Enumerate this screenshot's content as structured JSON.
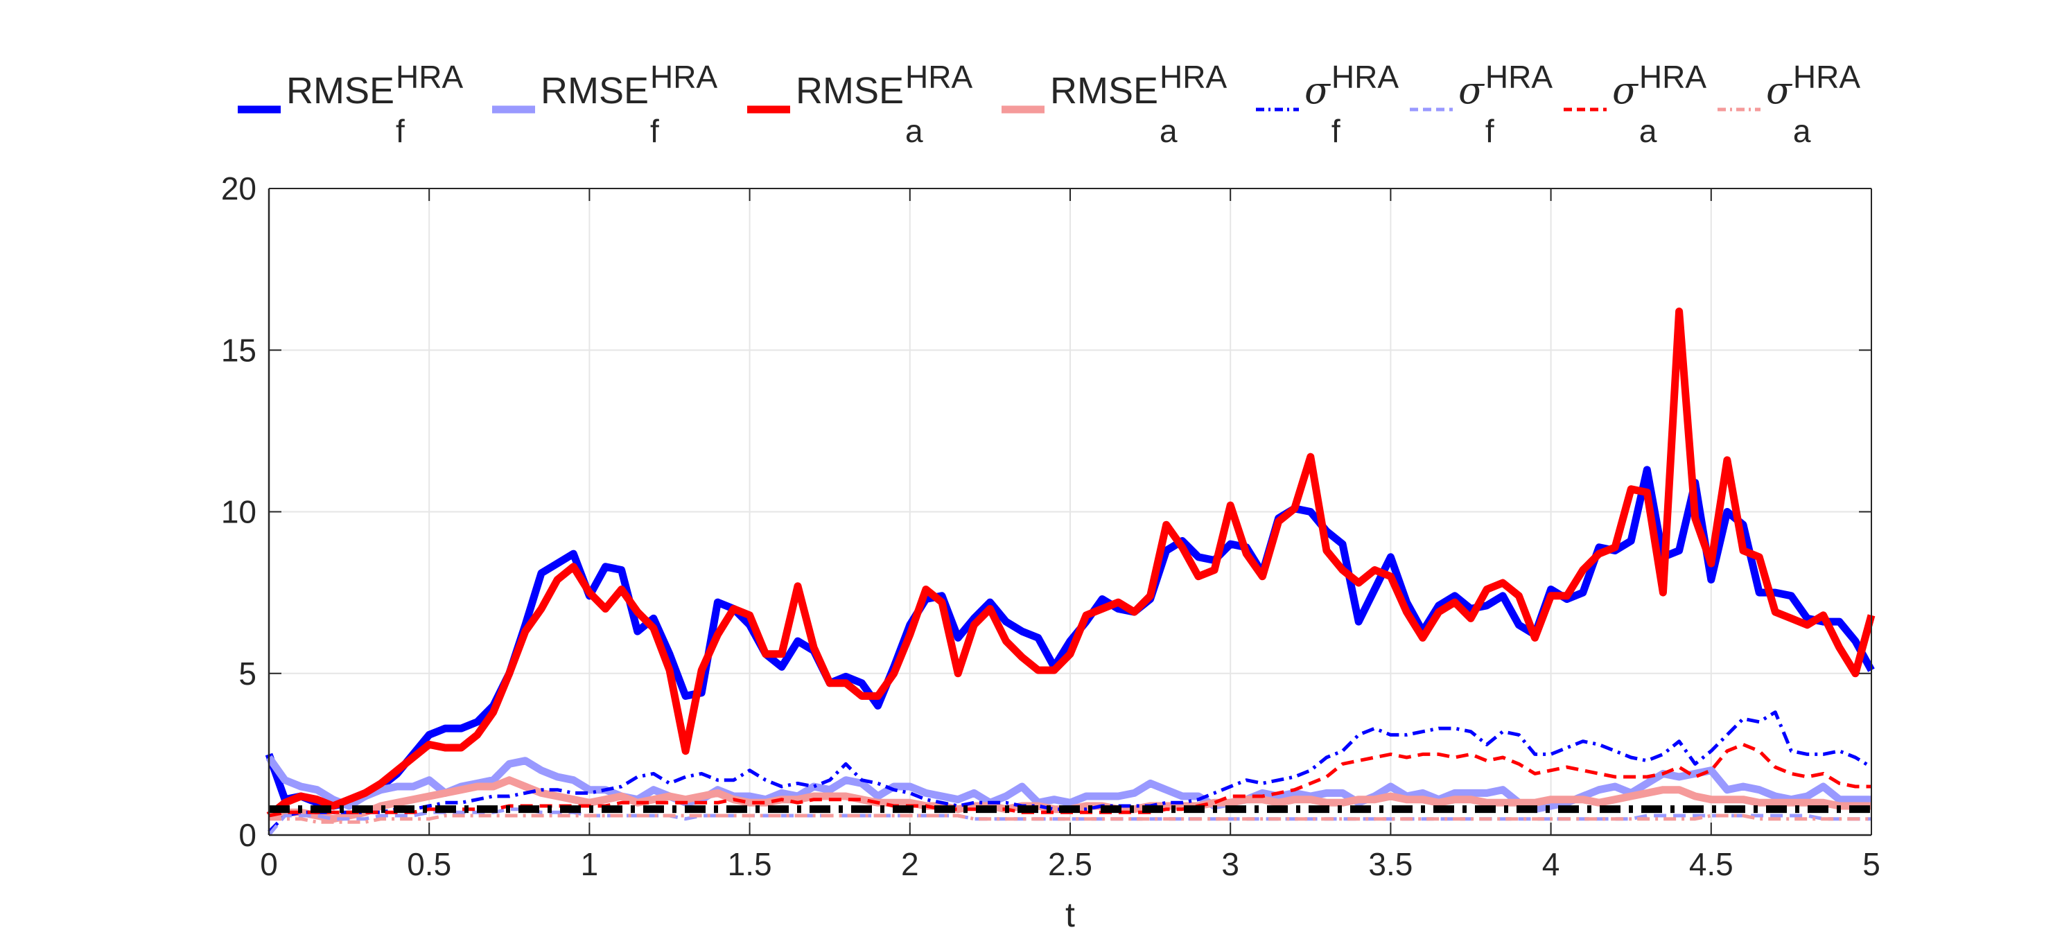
{
  "chart_data": {
    "type": "line",
    "title": "",
    "xlabel": "t",
    "ylabel": "",
    "xlim": [
      0,
      5
    ],
    "ylim": [
      0,
      20
    ],
    "xticks": [
      "0",
      "0.5",
      "1",
      "1.5",
      "2",
      "2.5",
      "3",
      "3.5",
      "4",
      "4.5",
      "5"
    ],
    "yticks": [
      "0",
      "5",
      "10",
      "15",
      "20"
    ],
    "grid": true,
    "legend_position": "top",
    "x": [
      0,
      0.05,
      0.1,
      0.15,
      0.2,
      0.25,
      0.3,
      0.35,
      0.4,
      0.45,
      0.5,
      0.55,
      0.6,
      0.65,
      0.7,
      0.75,
      0.8,
      0.85,
      0.9,
      0.95,
      1,
      1.05,
      1.1,
      1.15,
      1.2,
      1.25,
      1.3,
      1.35,
      1.4,
      1.45,
      1.5,
      1.55,
      1.6,
      1.65,
      1.7,
      1.75,
      1.8,
      1.85,
      1.9,
      1.95,
      2,
      2.05,
      2.1,
      2.15,
      2.2,
      2.25,
      2.3,
      2.35,
      2.4,
      2.45,
      2.5,
      2.55,
      2.6,
      2.65,
      2.7,
      2.75,
      2.8,
      2.85,
      2.9,
      2.95,
      3,
      3.05,
      3.1,
      3.15,
      3.2,
      3.25,
      3.3,
      3.35,
      3.4,
      3.45,
      3.5,
      3.55,
      3.6,
      3.65,
      3.7,
      3.75,
      3.8,
      3.85,
      3.9,
      3.95,
      4,
      4.05,
      4.1,
      4.15,
      4.2,
      4.25,
      4.3,
      4.35,
      4.4,
      4.45,
      4.5,
      4.55,
      4.6,
      4.65,
      4.7,
      4.75,
      4.8,
      4.85,
      4.9,
      4.95,
      5
    ],
    "series": [
      {
        "name": "RMSE_f^HRA",
        "color": "#0000ff",
        "style": "solid",
        "width": "thick",
        "values": [
          2.5,
          1.1,
          1.2,
          1.0,
          0.9,
          1.0,
          1.2,
          1.5,
          1.9,
          2.5,
          3.1,
          3.3,
          3.3,
          3.5,
          4.0,
          5.0,
          6.5,
          8.1,
          8.4,
          8.7,
          7.4,
          8.3,
          8.2,
          6.3,
          6.7,
          5.6,
          4.3,
          4.4,
          7.2,
          7.0,
          6.5,
          5.6,
          5.2,
          6.0,
          5.7,
          4.7,
          4.9,
          4.7,
          4.0,
          5.2,
          6.5,
          7.3,
          7.4,
          6.1,
          6.7,
          7.2,
          6.6,
          6.3,
          6.1,
          5.2,
          6.0,
          6.6,
          7.3,
          7.0,
          6.9,
          7.3,
          8.8,
          9.1,
          8.6,
          8.5,
          9.0,
          8.9,
          8.1,
          9.8,
          10.1,
          10.0,
          9.4,
          9.0,
          6.6,
          7.6,
          8.6,
          7.2,
          6.3,
          7.1,
          7.4,
          7.0,
          7.1,
          7.4,
          6.5,
          6.2,
          7.6,
          7.3,
          7.5,
          8.9,
          8.8,
          9.1,
          11.3,
          8.6,
          8.8,
          10.9,
          7.9,
          10.0,
          9.6,
          7.5,
          7.5,
          7.4,
          6.7,
          6.6,
          6.6,
          6.0,
          5.1
        ]
      },
      {
        "name": "RMSE_f^HRA",
        "color": "#9999ff",
        "style": "solid",
        "width": "thick",
        "values": [
          2.4,
          1.7,
          1.5,
          1.4,
          1.1,
          0.9,
          1.2,
          1.4,
          1.5,
          1.5,
          1.7,
          1.3,
          1.5,
          1.6,
          1.7,
          2.2,
          2.3,
          2.0,
          1.8,
          1.7,
          1.4,
          1.4,
          1.2,
          1.1,
          1.4,
          1.2,
          1.0,
          1.1,
          1.4,
          1.2,
          1.2,
          1.1,
          1.3,
          1.2,
          1.5,
          1.4,
          1.7,
          1.6,
          1.2,
          1.5,
          1.5,
          1.3,
          1.2,
          1.1,
          1.3,
          1.0,
          1.2,
          1.5,
          1.0,
          1.1,
          1.0,
          1.2,
          1.2,
          1.2,
          1.3,
          1.6,
          1.4,
          1.2,
          1.2,
          0.9,
          1.0,
          1.1,
          1.3,
          1.2,
          1.3,
          1.2,
          1.3,
          1.3,
          1.0,
          1.2,
          1.5,
          1.2,
          1.3,
          1.1,
          1.3,
          1.3,
          1.3,
          1.4,
          1.0,
          0.8,
          0.9,
          1.0,
          1.2,
          1.4,
          1.5,
          1.3,
          1.6,
          1.9,
          1.8,
          1.9,
          2.0,
          1.4,
          1.5,
          1.4,
          1.2,
          1.1,
          1.2,
          1.5,
          1.1,
          1.1,
          1.1
        ]
      },
      {
        "name": "RMSE_a^HRA",
        "color": "#ff0000",
        "style": "solid",
        "width": "thick",
        "values": [
          0.6,
          1.0,
          1.2,
          1.1,
          0.9,
          1.1,
          1.3,
          1.6,
          2.0,
          2.4,
          2.8,
          2.7,
          2.7,
          3.1,
          3.8,
          5.0,
          6.3,
          7.0,
          7.9,
          8.3,
          7.5,
          7.0,
          7.6,
          6.9,
          6.4,
          5.1,
          2.6,
          5.1,
          6.2,
          7.0,
          6.8,
          5.6,
          5.6,
          7.7,
          5.8,
          4.7,
          4.7,
          4.3,
          4.3,
          5.0,
          6.2,
          7.6,
          7.2,
          5.0,
          6.5,
          7.0,
          6.0,
          5.5,
          5.1,
          5.1,
          5.6,
          6.8,
          7.0,
          7.2,
          6.9,
          7.4,
          9.6,
          8.9,
          8.0,
          8.2,
          10.2,
          8.7,
          8.0,
          9.7,
          10.1,
          11.7,
          8.8,
          8.2,
          7.8,
          8.2,
          8.0,
          6.9,
          6.1,
          6.9,
          7.2,
          6.7,
          7.6,
          7.8,
          7.4,
          6.1,
          7.4,
          7.4,
          8.2,
          8.7,
          8.9,
          10.7,
          10.6,
          7.5,
          16.2,
          9.8,
          8.4,
          11.6,
          8.8,
          8.6,
          6.9,
          6.7,
          6.5,
          6.8,
          5.8,
          5.0,
          6.8
        ]
      },
      {
        "name": "RMSE_a^HRA",
        "color": "#f59a9a",
        "style": "solid",
        "width": "thick",
        "values": [
          0.6,
          0.7,
          0.7,
          0.6,
          0.5,
          0.6,
          0.7,
          0.9,
          1.0,
          1.1,
          1.2,
          1.3,
          1.4,
          1.5,
          1.5,
          1.7,
          1.5,
          1.3,
          1.2,
          1.1,
          1.0,
          1.1,
          1.2,
          1.0,
          1.1,
          1.2,
          1.1,
          1.2,
          1.3,
          1.1,
          1.0,
          1.0,
          1.1,
          1.1,
          1.2,
          1.2,
          1.2,
          1.1,
          1.0,
          1.0,
          1.0,
          0.9,
          0.9,
          0.8,
          0.9,
          0.9,
          0.8,
          0.9,
          0.9,
          0.8,
          0.8,
          0.9,
          0.9,
          0.8,
          0.8,
          0.9,
          0.9,
          0.9,
          0.9,
          1.0,
          1.0,
          1.1,
          1.1,
          1.0,
          1.1,
          1.1,
          1.0,
          1.0,
          1.1,
          1.1,
          1.2,
          1.1,
          1.1,
          1.0,
          1.1,
          1.1,
          1.0,
          1.0,
          1.0,
          1.0,
          1.1,
          1.1,
          1.1,
          1.0,
          1.1,
          1.2,
          1.3,
          1.4,
          1.4,
          1.2,
          1.1,
          1.1,
          1.1,
          1.0,
          1.0,
          1.0,
          1.0,
          1.0,
          0.9,
          0.9,
          0.9
        ]
      },
      {
        "name": "σ_f^HRA",
        "color": "#0000ff",
        "style": "dashdot",
        "width": "thin",
        "values": [
          0.1,
          0.6,
          0.7,
          0.7,
          0.7,
          0.7,
          0.7,
          0.7,
          0.8,
          0.8,
          0.9,
          1.0,
          1.0,
          1.1,
          1.2,
          1.2,
          1.3,
          1.4,
          1.4,
          1.3,
          1.3,
          1.4,
          1.5,
          1.8,
          1.9,
          1.6,
          1.8,
          1.9,
          1.7,
          1.7,
          2.0,
          1.7,
          1.5,
          1.6,
          1.5,
          1.7,
          2.2,
          1.7,
          1.6,
          1.4,
          1.3,
          1.1,
          1.0,
          0.9,
          1.0,
          1.0,
          1.0,
          0.9,
          0.9,
          0.8,
          0.8,
          0.8,
          0.9,
          0.9,
          0.9,
          0.9,
          1.0,
          1.0,
          1.1,
          1.3,
          1.5,
          1.7,
          1.6,
          1.7,
          1.8,
          2.0,
          2.4,
          2.6,
          3.1,
          3.3,
          3.1,
          3.1,
          3.2,
          3.3,
          3.3,
          3.2,
          2.8,
          3.2,
          3.1,
          2.5,
          2.5,
          2.7,
          2.9,
          2.8,
          2.6,
          2.4,
          2.3,
          2.5,
          2.9,
          2.2,
          2.6,
          3.1,
          3.6,
          3.5,
          3.8,
          2.6,
          2.5,
          2.5,
          2.6,
          2.4,
          2.1
        ]
      },
      {
        "name": "σ_f^HRA",
        "color": "#9999ff",
        "style": "dashed",
        "width": "thin",
        "values": [
          0.0,
          0.6,
          0.6,
          0.6,
          0.5,
          0.5,
          0.5,
          0.6,
          0.6,
          0.6,
          0.7,
          0.7,
          0.7,
          0.7,
          0.7,
          0.8,
          0.8,
          0.7,
          0.7,
          0.7,
          0.6,
          0.6,
          0.6,
          0.6,
          0.6,
          0.6,
          0.5,
          0.6,
          0.6,
          0.6,
          0.6,
          0.6,
          0.6,
          0.6,
          0.6,
          0.6,
          0.6,
          0.6,
          0.6,
          0.6,
          0.6,
          0.6,
          0.6,
          0.6,
          0.5,
          0.5,
          0.5,
          0.5,
          0.5,
          0.5,
          0.5,
          0.5,
          0.5,
          0.5,
          0.5,
          0.5,
          0.5,
          0.5,
          0.5,
          0.5,
          0.5,
          0.5,
          0.5,
          0.5,
          0.5,
          0.5,
          0.5,
          0.5,
          0.5,
          0.5,
          0.5,
          0.5,
          0.5,
          0.5,
          0.5,
          0.5,
          0.5,
          0.5,
          0.5,
          0.5,
          0.5,
          0.5,
          0.5,
          0.5,
          0.5,
          0.5,
          0.6,
          0.6,
          0.6,
          0.6,
          0.6,
          0.6,
          0.6,
          0.6,
          0.6,
          0.6,
          0.6,
          0.5,
          0.5,
          0.5,
          0.5
        ]
      },
      {
        "name": "σ_a^HRA",
        "color": "#ff0000",
        "style": "dashed",
        "width": "thin",
        "values": [
          0.6,
          0.7,
          0.7,
          0.7,
          0.7,
          0.7,
          0.7,
          0.7,
          0.7,
          0.7,
          0.8,
          0.8,
          0.8,
          0.8,
          0.8,
          0.9,
          0.9,
          0.9,
          0.9,
          0.9,
          0.9,
          0.9,
          1.0,
          1.0,
          1.0,
          1.0,
          1.0,
          1.0,
          1.0,
          1.1,
          1.0,
          1.0,
          1.1,
          1.0,
          1.1,
          1.1,
          1.1,
          1.1,
          1.0,
          0.9,
          0.9,
          0.9,
          0.8,
          0.8,
          0.8,
          0.8,
          0.8,
          0.7,
          0.7,
          0.7,
          0.7,
          0.7,
          0.7,
          0.7,
          0.7,
          0.7,
          0.8,
          0.8,
          0.9,
          1.0,
          1.2,
          1.2,
          1.2,
          1.3,
          1.4,
          1.6,
          1.8,
          2.2,
          2.3,
          2.4,
          2.5,
          2.4,
          2.5,
          2.5,
          2.4,
          2.5,
          2.3,
          2.4,
          2.2,
          1.9,
          2.0,
          2.1,
          2.0,
          1.9,
          1.8,
          1.8,
          1.8,
          1.9,
          2.1,
          1.8,
          2.0,
          2.6,
          2.8,
          2.6,
          2.1,
          1.9,
          1.8,
          1.9,
          1.6,
          1.5,
          1.5
        ]
      },
      {
        "name": "σ_a^HRA",
        "color": "#f59a9a",
        "style": "dashdot",
        "width": "thin",
        "values": [
          0.5,
          0.5,
          0.5,
          0.4,
          0.4,
          0.4,
          0.4,
          0.5,
          0.5,
          0.5,
          0.5,
          0.6,
          0.6,
          0.6,
          0.6,
          0.6,
          0.6,
          0.6,
          0.6,
          0.6,
          0.6,
          0.6,
          0.6,
          0.6,
          0.6,
          0.6,
          0.6,
          0.6,
          0.6,
          0.6,
          0.6,
          0.6,
          0.6,
          0.6,
          0.6,
          0.6,
          0.6,
          0.6,
          0.6,
          0.6,
          0.6,
          0.6,
          0.6,
          0.6,
          0.5,
          0.5,
          0.5,
          0.5,
          0.5,
          0.5,
          0.5,
          0.5,
          0.5,
          0.5,
          0.5,
          0.5,
          0.5,
          0.5,
          0.5,
          0.5,
          0.5,
          0.5,
          0.5,
          0.5,
          0.5,
          0.5,
          0.5,
          0.5,
          0.5,
          0.5,
          0.5,
          0.5,
          0.5,
          0.5,
          0.5,
          0.5,
          0.5,
          0.5,
          0.5,
          0.5,
          0.5,
          0.5,
          0.5,
          0.5,
          0.5,
          0.5,
          0.5,
          0.5,
          0.5,
          0.5,
          0.6,
          0.6,
          0.6,
          0.5,
          0.5,
          0.5,
          0.5,
          0.5,
          0.5,
          0.5,
          0.5
        ]
      }
    ],
    "reference_line": {
      "color": "#000000",
      "style": "dashdot",
      "y": 0.8
    }
  },
  "legend": {
    "items": [
      {
        "base": "RMSE",
        "sup": "HRA",
        "sub": "f",
        "is_sigma": false,
        "color": "#0000ff",
        "style": "solid"
      },
      {
        "base": "RMSE",
        "sup": "HRA",
        "sub": "f",
        "is_sigma": false,
        "color": "#9999ff",
        "style": "solid"
      },
      {
        "base": "RMSE",
        "sup": "HRA",
        "sub": "a",
        "is_sigma": false,
        "color": "#ff0000",
        "style": "solid"
      },
      {
        "base": "RMSE",
        "sup": "HRA",
        "sub": "a",
        "is_sigma": false,
        "color": "#f59a9a",
        "style": "solid"
      },
      {
        "base": "σ",
        "sup": "HRA",
        "sub": "f",
        "is_sigma": true,
        "color": "#0000ff",
        "style": "dashdot"
      },
      {
        "base": "σ",
        "sup": "HRA",
        "sub": "f",
        "is_sigma": true,
        "color": "#9999ff",
        "style": "dashed"
      },
      {
        "base": "σ",
        "sup": "HRA",
        "sub": "a",
        "is_sigma": true,
        "color": "#ff0000",
        "style": "dashed"
      },
      {
        "base": "σ",
        "sup": "HRA",
        "sub": "a",
        "is_sigma": true,
        "color": "#f59a9a",
        "style": "dashdot"
      }
    ]
  }
}
